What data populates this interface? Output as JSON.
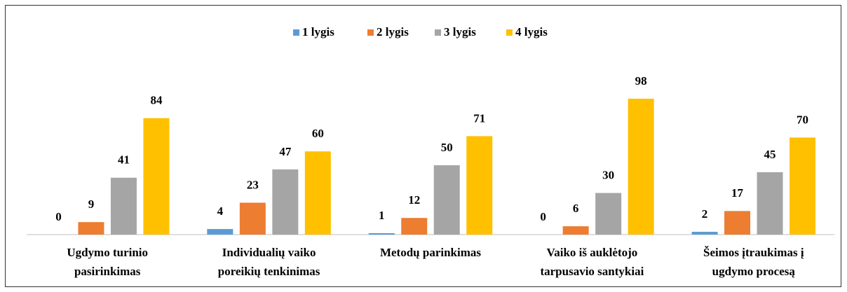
{
  "chart_data": {
    "type": "bar",
    "categories": [
      "Ugdymo turinio\npasirinkimas",
      "Individualių vaiko\nporeikių tenkinimas",
      "Metodų parinkimas",
      "Vaiko iš auklėtojo\ntarpusavio santykiai",
      "Šeimos įtraukimas į\nugdymo procesą"
    ],
    "series": [
      {
        "name": "1 lygis",
        "color": "#5b9bd5",
        "values": [
          0,
          4,
          1,
          0,
          2
        ]
      },
      {
        "name": "2 lygis",
        "color": "#ed7d31",
        "values": [
          9,
          23,
          12,
          6,
          17
        ]
      },
      {
        "name": "3 lygis",
        "color": "#a5a5a5",
        "values": [
          41,
          47,
          50,
          30,
          45
        ]
      },
      {
        "name": "4 lygis",
        "color": "#ffc000",
        "values": [
          84,
          60,
          71,
          98,
          70
        ]
      }
    ],
    "ylim": [
      0,
      100
    ],
    "legend": "top"
  }
}
